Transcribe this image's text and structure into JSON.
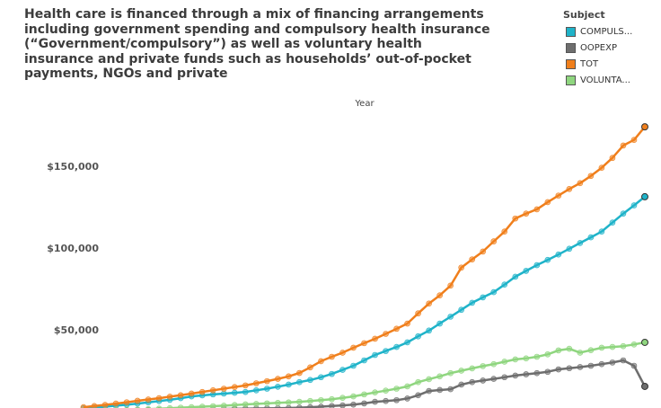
{
  "chart_data": {
    "type": "line",
    "title": "Health care is financed through a mix of financing arrangements including government spending and compulsory health insurance (“Government/compulsory”) as well as voluntary health insurance and private funds such as households’ out-of-pocket payments, NGOs and private",
    "x_label": "Year",
    "legend_title": "Subject",
    "legend": "top-right",
    "categories": [
      null,
      null,
      null,
      null,
      null,
      null,
      null,
      null,
      null,
      null,
      null,
      null,
      null,
      null,
      null,
      null,
      null,
      null,
      null,
      null,
      null,
      null,
      null,
      null,
      null,
      null,
      null,
      null,
      null,
      null,
      null,
      null,
      null,
      null,
      null,
      null,
      null,
      null,
      null,
      null,
      null,
      null,
      null,
      null,
      null,
      null,
      null,
      null,
      null,
      null,
      null,
      null,
      null
    ],
    "ylim": [
      0,
      190000
    ],
    "yticks": [
      {
        "value": 50000,
        "label": "$50,000"
      },
      {
        "value": 100000,
        "label": "$100,000"
      },
      {
        "value": 150000,
        "label": "$150,000"
      }
    ],
    "series": [
      {
        "name": "COMPULS...",
        "color": "#1fb3c9",
        "values": [
          2000,
          2500,
          3000,
          3600,
          4200,
          4900,
          5600,
          6400,
          7200,
          8200,
          9300,
          9900,
          10500,
          11000,
          11500,
          12000,
          13000,
          14000,
          15200,
          16500,
          18000,
          19300,
          21000,
          23000,
          25500,
          28000,
          31300,
          34600,
          37000,
          39500,
          42300,
          46000,
          49500,
          53800,
          58000,
          62200,
          66500,
          69800,
          73000,
          77600,
          82400,
          86000,
          89500,
          92700,
          96000,
          99500,
          103000,
          106500,
          110000,
          115500,
          121000,
          126000,
          131300
        ]
      },
      {
        "name": "OOPEXP",
        "color": "#6e6e6e",
        "values": [
          300,
          400,
          500,
          600,
          700,
          800,
          900,
          1000,
          1100,
          1200,
          1300,
          1400,
          1500,
          1600,
          1700,
          1800,
          1900,
          2000,
          2100,
          2200,
          2400,
          2700,
          3000,
          3400,
          3800,
          4300,
          5000,
          6000,
          6500,
          7000,
          8000,
          10000,
          12600,
          13200,
          13700,
          16500,
          18000,
          19000,
          20000,
          21000,
          22000,
          22800,
          23500,
          24300,
          25800,
          26500,
          27200,
          28000,
          29000,
          30000,
          31300,
          28000,
          15400
        ]
      },
      {
        "name": "TOT",
        "color": "#f07f1c",
        "values": [
          2700,
          3400,
          4100,
          4900,
          5700,
          6600,
          7400,
          8200,
          9100,
          10000,
          11000,
          12000,
          13000,
          14000,
          15000,
          16000,
          17300,
          18600,
          20000,
          21500,
          23600,
          27000,
          30800,
          33500,
          36000,
          39000,
          41800,
          44500,
          47500,
          50600,
          53800,
          60000,
          66000,
          71000,
          77000,
          88000,
          93000,
          97800,
          104000,
          110000,
          118000,
          121000,
          123600,
          128000,
          132000,
          136000,
          139600,
          144000,
          149000,
          155000,
          162600,
          166000,
          174000
        ]
      },
      {
        "name": "VOLUNTA...",
        "color": "#8fd67f",
        "values": [
          300,
          500,
          700,
          900,
          1100,
          1300,
          1500,
          1800,
          2100,
          2400,
          2700,
          3000,
          3300,
          3600,
          4000,
          4400,
          4700,
          5000,
          5300,
          5600,
          6000,
          6500,
          7000,
          7600,
          8400,
          9300,
          10500,
          11700,
          12800,
          14000,
          15400,
          18000,
          19800,
          21500,
          23500,
          25000,
          26400,
          27800,
          29000,
          30500,
          31900,
          32500,
          33500,
          35000,
          37400,
          38400,
          36000,
          37500,
          39000,
          39500,
          40000,
          41000,
          42300
        ]
      }
    ]
  }
}
